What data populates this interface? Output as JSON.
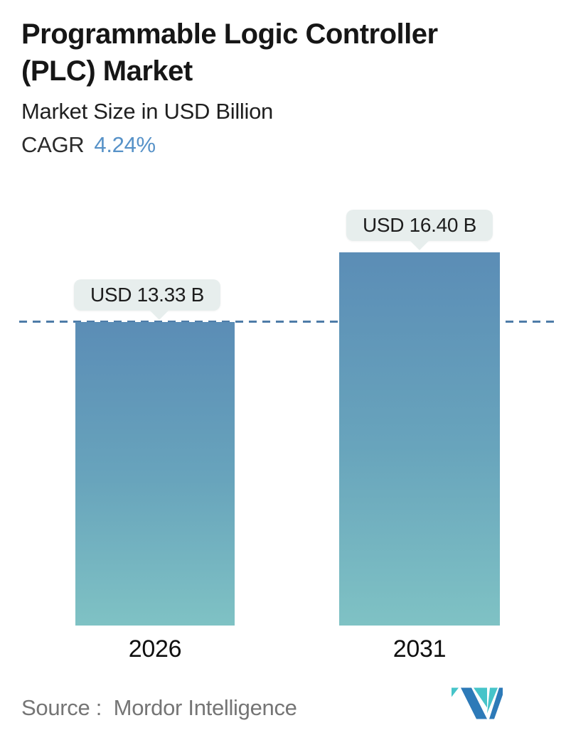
{
  "header": {
    "title": "Programmable Logic Controller (PLC) Market",
    "subtitle": "Market Size in USD Billion",
    "cagr_label": "CAGR",
    "cagr_value": "4.24%"
  },
  "chart_data": {
    "type": "bar",
    "title": "Programmable Logic Controller (PLC) Market",
    "subtitle": "Market Size in USD Billion",
    "unit": "USD Billion",
    "cagr": "4.24%",
    "categories": [
      "2026",
      "2031"
    ],
    "values": [
      13.33,
      16.4
    ],
    "value_labels": [
      "USD 13.33 B",
      "USD 16.40 B"
    ],
    "ylim": [
      0,
      16.4
    ],
    "grid": false,
    "legend": false,
    "baseline": {
      "value": 13.33,
      "style": "dashed",
      "color": "#4e7ca8"
    },
    "colors": {
      "bar_gradient_top": "#5b8db6",
      "bar_gradient_mid": "#68a4bc",
      "bar_gradient_bottom": "#7fc2c4",
      "dash_line": "#4e7ca8",
      "tooltip_bg": "#e7eeed",
      "cagr_value": "#5792c8"
    }
  },
  "footer": {
    "source_label": "Source :  Mordor Intelligence",
    "logo": {
      "name": "mordor-intelligence-logo",
      "teal": "#46c4c9",
      "blue": "#2d7ab8"
    }
  }
}
